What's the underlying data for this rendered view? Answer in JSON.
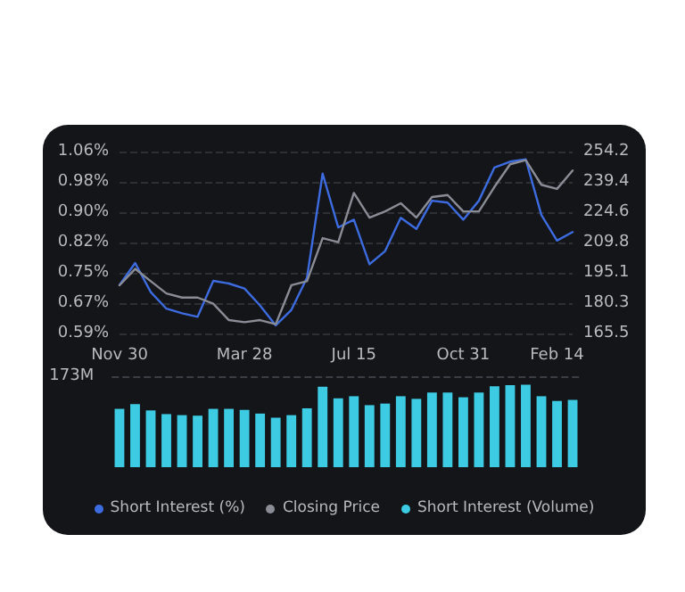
{
  "chart_data": [
    {
      "type": "line",
      "categories": [
        "Nov 30",
        null,
        null,
        null,
        null,
        null,
        null,
        null,
        "Mar 28",
        null,
        null,
        null,
        null,
        null,
        null,
        "Jul 15",
        null,
        null,
        null,
        null,
        null,
        null,
        "Oct 31",
        null,
        null,
        null,
        null,
        null,
        "Feb 14",
        null
      ],
      "series": [
        {
          "name": "Short Interest (%)",
          "color": "#3d6be0",
          "values": [
            0.715,
            0.772,
            0.697,
            0.654,
            0.642,
            0.633,
            0.726,
            0.719,
            0.706,
            0.662,
            0.611,
            0.651,
            0.734,
            1.003,
            0.864,
            0.884,
            0.769,
            0.803,
            0.889,
            0.86,
            0.933,
            0.928,
            0.884,
            0.933,
            1.019,
            1.034,
            1.04,
            0.896,
            0.83,
            0.852
          ]
        },
        {
          "name": "Closing Price",
          "color": "#8a8d96",
          "axis": "y2",
          "values": [
            189,
            197,
            191,
            185,
            183,
            183,
            180,
            172,
            171,
            172,
            170,
            189,
            191,
            212,
            210,
            234,
            222,
            225,
            229,
            222,
            232,
            233,
            225,
            225,
            237,
            248,
            250,
            238,
            236,
            245
          ]
        }
      ],
      "ylim": [
        0.59,
        1.06
      ],
      "yticks": [
        {
          "value": 0.59,
          "label": "0.59%"
        },
        {
          "value": 0.6683,
          "label": "0.67%"
        },
        {
          "value": 0.7467,
          "label": "0.75%"
        },
        {
          "value": 0.825,
          "label": "0.82%"
        },
        {
          "value": 0.9033,
          "label": "0.90%"
        },
        {
          "value": 0.9817,
          "label": "0.98%"
        },
        {
          "value": 1.06,
          "label": "1.06%"
        }
      ],
      "y2lim": [
        165.5,
        254.2
      ],
      "y2ticks": [
        165.5,
        180.3,
        195.1,
        209.8,
        224.6,
        239.4,
        254.2
      ],
      "grid": "y",
      "marker": "none",
      "line_style": "solid",
      "legend": "bottom"
    },
    {
      "type": "bar",
      "categories": [
        null,
        null,
        null,
        null,
        null,
        null,
        null,
        null,
        null,
        null,
        null,
        null,
        null,
        null,
        null,
        null,
        null,
        null,
        null,
        null,
        null,
        null,
        null,
        null,
        null,
        null,
        null,
        null,
        null,
        null
      ],
      "series": [
        {
          "name": "Short Interest (Volume)",
          "color": "#3ccbe3",
          "values": [
            111,
            120,
            108,
            101,
            99,
            98,
            111,
            111,
            109,
            102,
            94,
            99,
            112,
            153,
            131,
            135,
            118,
            121,
            135,
            130,
            142,
            142,
            133,
            142,
            154,
            156,
            157,
            135,
            126,
            128
          ]
        }
      ],
      "ylim": [
        0,
        173
      ],
      "yticks": [
        {
          "value": 173,
          "label": "173M"
        }
      ],
      "legend": "bottom"
    }
  ]
}
